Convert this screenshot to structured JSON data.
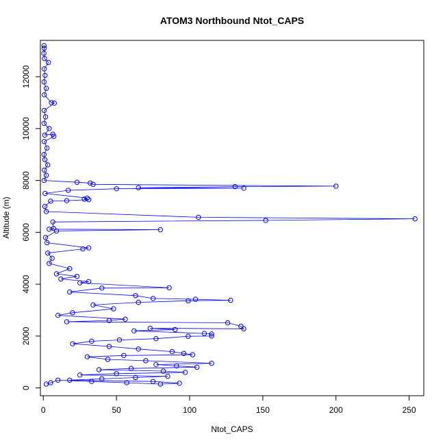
{
  "chart_data": {
    "type": "scatter",
    "title": "ATOM3 Northbound Ntot_CAPS",
    "xlabel": "Ntot_CAPS",
    "ylabel": "Altitude (m)",
    "xlim": [
      -2,
      260
    ],
    "ylim": [
      -300,
      13400
    ],
    "x_ticks": [
      0,
      50,
      100,
      150,
      200,
      250
    ],
    "y_ticks": [
      0,
      2000,
      4000,
      6000,
      8000,
      10000,
      12000
    ],
    "grid": false,
    "legend": "none",
    "series": [
      {
        "color": "#0000ff",
        "marker": "open-circle",
        "connected": true,
        "points": [
          [
            0.5,
            13200
          ],
          [
            0.6,
            13100
          ],
          [
            0.4,
            12900
          ],
          [
            0.8,
            12700
          ],
          [
            3.5,
            12550
          ],
          [
            0.6,
            12300
          ],
          [
            1.2,
            12050
          ],
          [
            0.5,
            11800
          ],
          [
            2.0,
            11550
          ],
          [
            0.7,
            11300
          ],
          [
            5.5,
            11000
          ],
          [
            7.5,
            10980
          ],
          [
            0.6,
            10700
          ],
          [
            1.5,
            10450
          ],
          [
            0.5,
            10200
          ],
          [
            4.0,
            10000
          ],
          [
            1.0,
            9750
          ],
          [
            6.5,
            9780
          ],
          [
            7.2,
            9700
          ],
          [
            0.6,
            9500
          ],
          [
            2.5,
            9250
          ],
          [
            0.5,
            9000
          ],
          [
            1.0,
            8800
          ],
          [
            3.0,
            8600
          ],
          [
            0.7,
            8400
          ],
          [
            2.0,
            8200
          ],
          [
            0.5,
            8000
          ],
          [
            23,
            7930
          ],
          [
            32,
            7900
          ],
          [
            34,
            7850
          ],
          [
            200,
            7780
          ],
          [
            131,
            7760
          ],
          [
            65,
            7720
          ],
          [
            137,
            7700
          ],
          [
            50,
            7680
          ],
          [
            17,
            7620
          ],
          [
            1.2,
            7500
          ],
          [
            30,
            7320
          ],
          [
            28,
            7280
          ],
          [
            31,
            7260
          ],
          [
            16,
            7220
          ],
          [
            5,
            7200
          ],
          [
            1.0,
            7000
          ],
          [
            2.0,
            6800
          ],
          [
            106,
            6580
          ],
          [
            254,
            6520
          ],
          [
            152,
            6460
          ],
          [
            6.5,
            6400
          ],
          [
            7,
            6150
          ],
          [
            4,
            6120
          ],
          [
            80,
            6100
          ],
          [
            9,
            6050
          ],
          [
            1.5,
            5800
          ],
          [
            2.5,
            5600
          ],
          [
            31,
            5400
          ],
          [
            27,
            5360
          ],
          [
            3,
            5200
          ],
          [
            6,
            5000
          ],
          [
            4,
            4800
          ],
          [
            18,
            4600
          ],
          [
            9,
            4400
          ],
          [
            23,
            4300
          ],
          [
            12,
            4200
          ],
          [
            31,
            4100
          ],
          [
            25,
            4050
          ],
          [
            86,
            3860
          ],
          [
            40,
            3850
          ],
          [
            18,
            3700
          ],
          [
            63,
            3560
          ],
          [
            75,
            3450
          ],
          [
            104,
            3420
          ],
          [
            128,
            3380
          ],
          [
            99,
            3360
          ],
          [
            65,
            3300
          ],
          [
            34,
            3200
          ],
          [
            48,
            3050
          ],
          [
            20,
            2900
          ],
          [
            10,
            2800
          ],
          [
            56,
            2650
          ],
          [
            45,
            2600
          ],
          [
            16,
            2550
          ],
          [
            126,
            2510
          ],
          [
            135,
            2380
          ],
          [
            137,
            2280
          ],
          [
            73,
            2300
          ],
          [
            90,
            2250
          ],
          [
            62,
            2200
          ],
          [
            110,
            2100
          ],
          [
            115,
            2080
          ],
          [
            115,
            2000
          ],
          [
            99,
            1990
          ],
          [
            77,
            1900
          ],
          [
            52,
            1850
          ],
          [
            33,
            1800
          ],
          [
            20,
            1700
          ],
          [
            45,
            1600
          ],
          [
            65,
            1500
          ],
          [
            88,
            1400
          ],
          [
            96,
            1330
          ],
          [
            102,
            1280
          ],
          [
            55,
            1250
          ],
          [
            30,
            1200
          ],
          [
            44,
            1100
          ],
          [
            70,
            1050
          ],
          [
            115,
            950
          ],
          [
            77,
            900
          ],
          [
            91,
            850
          ],
          [
            105,
            800
          ],
          [
            60,
            750
          ],
          [
            38,
            700
          ],
          [
            82,
            650
          ],
          [
            97,
            600
          ],
          [
            50,
            550
          ],
          [
            25,
            500
          ],
          [
            85,
            450
          ],
          [
            63,
            400
          ],
          [
            40,
            350
          ],
          [
            18,
            300
          ],
          [
            75,
            250
          ],
          [
            93,
            180
          ],
          [
            80,
            150
          ],
          [
            57,
            200
          ],
          [
            33,
            250
          ],
          [
            10,
            300
          ],
          [
            5,
            200
          ],
          [
            2,
            150
          ]
        ]
      }
    ]
  }
}
